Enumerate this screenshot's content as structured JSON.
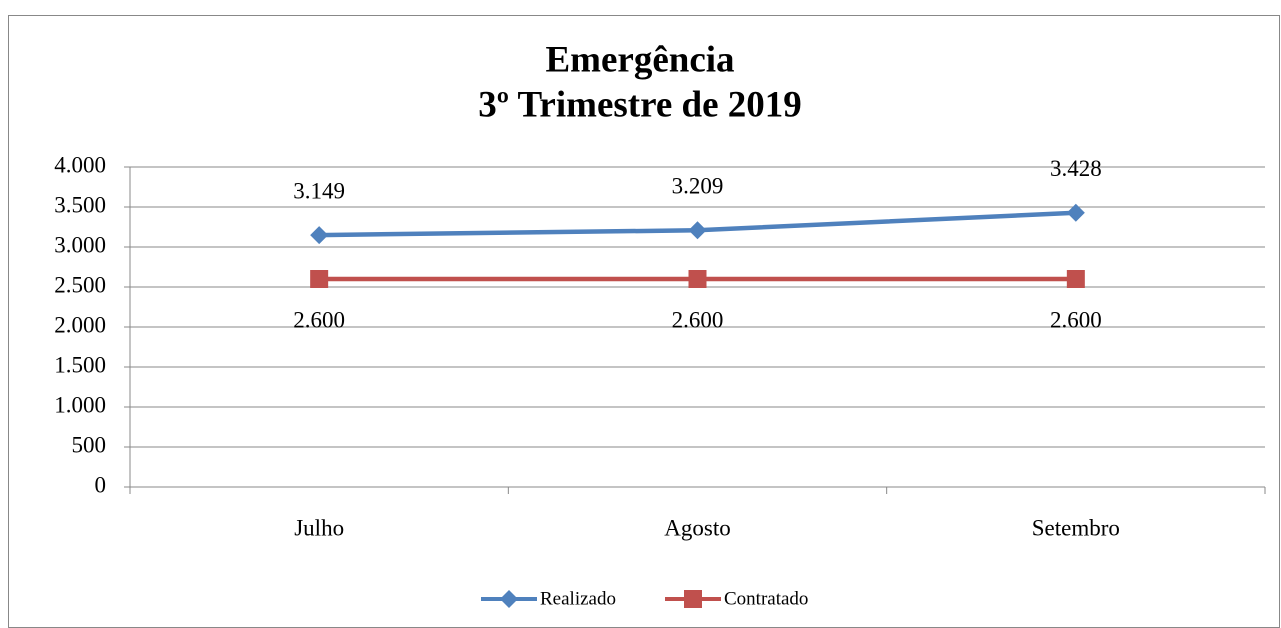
{
  "chart_data": {
    "type": "line",
    "title": "Emergência",
    "subtitle": "3º Trimestre de 2019",
    "categories": [
      "Julho",
      "Agosto",
      "Setembro"
    ],
    "series": [
      {
        "name": "Realizado",
        "color": "#4f81bd",
        "marker": "diamond",
        "values": [
          3149,
          3209,
          3428
        ],
        "value_labels": [
          "3.149",
          "3.209",
          "3.428"
        ]
      },
      {
        "name": "Contratado",
        "color": "#c0504d",
        "marker": "square",
        "values": [
          2600,
          2600,
          2600
        ],
        "value_labels": [
          "2.600",
          "2.600",
          "2.600"
        ]
      }
    ],
    "ylim": [
      0,
      4000
    ],
    "yticks": [
      0,
      500,
      {
        "value": 1000,
        "label": "1.000"
      },
      {
        "value": 1500,
        "label": "1.500"
      },
      {
        "value": 2000,
        "label": "2.000"
      },
      {
        "value": 2500,
        "label": "2.500"
      },
      {
        "value": 3000,
        "label": "3.000"
      },
      {
        "value": 3500,
        "label": "3.500"
      },
      {
        "value": 4000,
        "label": "4.000"
      }
    ],
    "grid": true,
    "legend": "bottom"
  }
}
